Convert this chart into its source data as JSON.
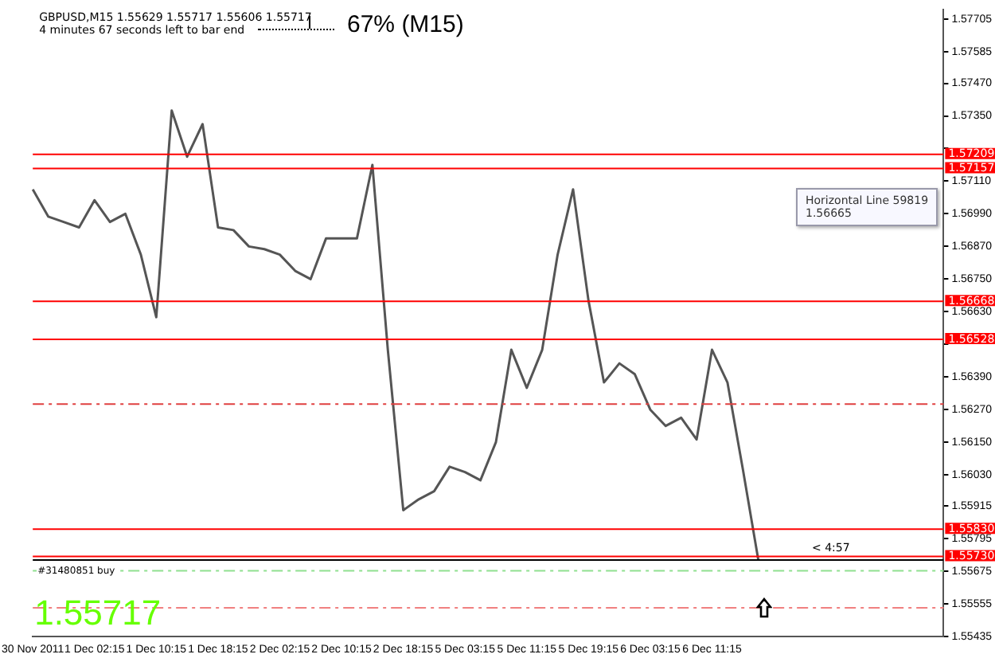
{
  "chart_data": {
    "type": "line",
    "categories": [
      "30 Nov 2011",
      null,
      null,
      null,
      "1 Dec 02:15",
      null,
      null,
      null,
      "1 Dec 10:15",
      null,
      null,
      null,
      "1 Dec 18:15",
      null,
      null,
      null,
      "2 Dec 02:15",
      null,
      null,
      null,
      "2 Dec 10:15",
      null,
      null,
      null,
      "2 Dec 18:15",
      null,
      null,
      null,
      "5 Dec 03:15",
      null,
      null,
      null,
      "5 Dec 11:15",
      null,
      null,
      null,
      "5 Dec 19:15",
      null,
      null,
      null,
      "6 Dec 03:15",
      null,
      null,
      null,
      "6 Dec 11:15",
      null,
      null,
      null,
      null,
      null,
      null,
      null,
      null,
      null,
      null,
      null,
      null,
      null,
      null,
      null
    ],
    "series": [
      {
        "color": "#555555",
        "values": [
          1.5708,
          1.5698,
          1.5696,
          1.5694,
          1.5704,
          1.5696,
          1.5699,
          1.5684,
          1.5661,
          1.5737,
          1.572,
          1.5732,
          1.5694,
          1.5693,
          1.5687,
          1.5686,
          1.5684,
          1.5678,
          1.5675,
          1.569,
          1.569,
          1.569,
          1.5717,
          1.5649,
          1.559,
          1.5594,
          1.5597,
          1.5606,
          1.5604,
          1.5601,
          1.5615,
          1.5649,
          1.5635,
          1.5649,
          1.5684,
          1.5708,
          1.5667,
          1.5637,
          1.5644,
          1.564,
          1.5627,
          1.5621,
          1.5624,
          1.5616,
          1.5649,
          1.5637,
          1.5605,
          1.55717,
          null,
          null,
          null,
          null,
          null,
          null,
          null,
          null,
          null,
          null,
          null,
          null
        ]
      }
    ],
    "ylim": [
      1.55435,
      1.5774
    ],
    "yticks": [
      1.57705,
      1.57585,
      {
        "value": 1.5747,
        "label": "1.57470"
      },
      {
        "value": 1.5735,
        "label": "1.57350"
      },
      {
        "value": 1.5723,
        "label": null
      },
      {
        "value": 1.5711,
        "label": "1.57110"
      },
      {
        "value": 1.5699,
        "label": "1.56990"
      },
      {
        "value": 1.5687,
        "label": "1.56870"
      },
      {
        "value": 1.5675,
        "label": "1.56750"
      },
      {
        "value": 1.5663,
        "label": "1.56630"
      },
      {
        "value": 1.5651,
        "label": null
      },
      {
        "value": 1.5639,
        "label": "1.56390"
      },
      {
        "value": 1.5627,
        "label": "1.56270"
      },
      {
        "value": 1.5615,
        "label": "1.56150"
      },
      {
        "value": 1.5603,
        "label": "1.56030"
      },
      1.55915,
      1.55795,
      1.55675,
      1.55555,
      1.55435
    ],
    "ref_lines": [
      {
        "axis": "y",
        "value": 1.57209,
        "label": "1.57209",
        "color": "#ff0000"
      },
      {
        "axis": "y",
        "value": 1.57157,
        "label": "1.57157",
        "color": "#ff0000"
      },
      {
        "axis": "y",
        "value": 1.56668,
        "label": "1.56668",
        "color": "#ff0000"
      },
      {
        "axis": "y",
        "value": 1.56528,
        "label": "1.56528",
        "color": "#ff0000"
      },
      {
        "axis": "y",
        "value": 1.5583,
        "label": "1.55830",
        "color": "#ff0000"
      },
      {
        "axis": "y",
        "value": 1.5573,
        "label": "1.55730",
        "color": "#ff0000"
      },
      {
        "axis": "y",
        "value": 1.5629,
        "color": "#e04040",
        "line_style": "dashed"
      },
      {
        "axis": "y",
        "value": 1.55717,
        "color": "#000000"
      },
      {
        "axis": "y",
        "value": 1.55677,
        "color": "#90e090",
        "line_style": "dashed"
      },
      {
        "axis": "y",
        "value": 1.55541,
        "color": "#f08080",
        "line_style": "dashed"
      }
    ],
    "annotations": [
      "GBPUSD,M15  1.55629 1.55717 1.55606 1.55717",
      "4 minutes 67 seconds left to bar end",
      "67% (M15)",
      "Horizontal Line 59819\n1.56665",
      "1.55717",
      "< 4:57",
      {
        "text": "#31480851 buy",
        "y": 1.5568
      }
    ],
    "legend": false,
    "marker": "none",
    "line_style": "solid",
    "grid": false
  }
}
